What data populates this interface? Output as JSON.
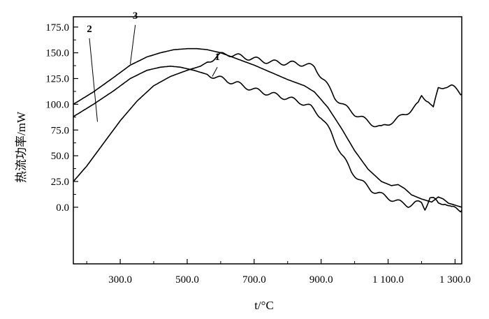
{
  "chart_data": {
    "type": "line",
    "title": "",
    "xlabel": "t/°C",
    "ylabel": "热流功率/mW",
    "xlim": [
      160,
      1320
    ],
    "ylim": [
      -55,
      185
    ],
    "xticks": [
      300,
      500,
      700,
      900,
      1100,
      1300
    ],
    "xtick_labels": [
      "300.0",
      "500.0",
      "700.0",
      "900.0",
      "1 100.0",
      "1 300.0"
    ],
    "yticks": [
      0,
      25,
      50,
      75,
      100,
      125,
      150,
      175
    ],
    "ytick_labels": [
      "0.0",
      "25.0",
      "50.0",
      "75.0",
      "100.0",
      "125.0",
      "150.0",
      "175.0"
    ],
    "grid": false,
    "legend": "none",
    "series": [
      {
        "name": "1",
        "label_at": [
          590,
          143
        ],
        "wavy": true,
        "x": [
          160,
          220,
          280,
          330,
          380,
          420,
          450,
          480,
          520,
          560,
          600,
          650,
          700,
          750,
          800,
          840,
          870,
          900,
          930,
          960,
          990,
          1020,
          1050,
          1080,
          1110,
          1140,
          1160,
          1180,
          1200,
          1210,
          1225,
          1235,
          1250,
          1270,
          1290,
          1320
        ],
        "y": [
          88,
          100,
          113,
          125,
          133,
          136,
          137,
          136,
          133,
          129,
          125,
          120,
          114,
          110,
          106,
          102,
          97,
          88,
          72,
          52,
          35,
          25,
          17,
          12,
          8,
          4,
          2,
          4,
          4,
          -1,
          10,
          8,
          3,
          5,
          -1,
          -3
        ]
      },
      {
        "name": "2",
        "label_at": [
          1145,
          230
        ],
        "label2_at": [
          208,
          170
        ],
        "wavy": true,
        "x": [
          160,
          200,
          250,
          300,
          350,
          400,
          450,
          500,
          540,
          570,
          600,
          620,
          650,
          700,
          750,
          800,
          850,
          880,
          910,
          940,
          970,
          1000,
          1030,
          1060,
          1080,
          1110,
          1140,
          1170,
          1190,
          1200,
          1220,
          1235,
          1250,
          1270,
          1290,
          1310,
          1320
        ],
        "y": [
          25,
          40,
          62,
          84,
          103,
          118,
          127,
          133,
          137,
          143,
          148,
          149,
          147,
          144,
          141,
          140,
          139,
          136,
          123,
          107,
          98,
          91,
          85,
          80,
          77,
          83,
          88,
          95,
          100,
          108,
          104,
          96,
          115,
          118,
          117,
          113,
          110
        ]
      },
      {
        "name": "3",
        "label_at": [
          345,
          183
        ],
        "wavy": false,
        "x": [
          160,
          220,
          280,
          330,
          380,
          420,
          460,
          500,
          530,
          560,
          600,
          650,
          700,
          750,
          800,
          850,
          880,
          920,
          960,
          1000,
          1040,
          1080,
          1110,
          1130,
          1150,
          1170,
          1200,
          1230,
          1250,
          1265,
          1280,
          1300,
          1320
        ],
        "y": [
          100,
          112,
          126,
          138,
          146,
          150,
          153,
          154,
          154,
          153,
          150,
          144,
          138,
          131,
          124,
          118,
          112,
          97,
          77,
          55,
          37,
          25,
          21,
          22,
          18,
          12,
          8,
          5,
          10,
          8,
          4,
          2,
          0
        ]
      }
    ]
  }
}
